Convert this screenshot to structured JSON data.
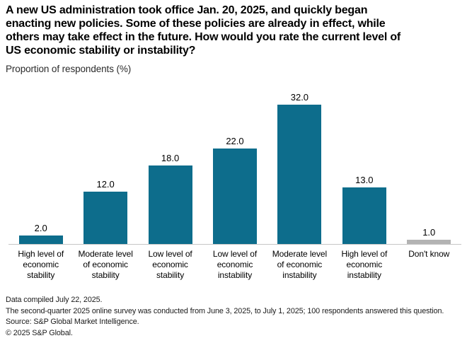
{
  "header": {
    "title_lines": [
      "A new US administration took office Jan. 20, 2025, and quickly began",
      "enacting new policies. Some of these policies are already in effect, while",
      "others may take effect in the future. How would you rate the current level of",
      "US economic stability or instability?"
    ],
    "subtitle": "Proportion of respondents (%)"
  },
  "chart_data": {
    "type": "bar",
    "title": "A new US administration took office Jan. 20, 2025, and quickly began enacting new policies. Some of these policies are already in effect, while others may take effect in the future. How would you rate the current level of US economic stability or instability?",
    "ylabel": "Proportion of respondents (%)",
    "xlabel": "",
    "categories": [
      "High level of economic stability",
      "Moderate level of economic stability",
      "Low level of economic stability",
      "Low level of economic instability",
      "Moderate level of economic instability",
      "High level of economic instability",
      "Don't know"
    ],
    "categories_wrapped": [
      "High level of\neconomic\nstability",
      "Moderate level\nof economic\nstability",
      "Low level of\neconomic\nstability",
      "Low level of\neconomic\ninstability",
      "Moderate level\nof economic\ninstability",
      "High level of\neconomic\ninstability",
      "Don't know"
    ],
    "values": [
      2.0,
      12.0,
      18.0,
      22.0,
      32.0,
      13.0,
      1.0
    ],
    "value_labels": [
      "2.0",
      "12.0",
      "18.0",
      "22.0",
      "32.0",
      "13.0",
      "1.0"
    ],
    "bar_colors": [
      "#0d6d8c",
      "#0d6d8c",
      "#0d6d8c",
      "#0d6d8c",
      "#0d6d8c",
      "#0d6d8c",
      "#b3b3b3"
    ],
    "ylim": [
      0,
      35
    ],
    "grid": false,
    "legend_position": "none",
    "data_labels_shown": true
  },
  "footer": {
    "lines": [
      "Data compiled July 22, 2025.",
      "The second-quarter 2025 online survey was conducted from June 3, 2025, to July 1, 2025; 100 respondents answered this question.",
      "Source: S&P Global Market Intelligence.",
      "© 2025 S&P Global."
    ]
  },
  "colors": {
    "bar_teal": "#0d6d8c",
    "bar_gray": "#b3b3b3",
    "axis_line": "#c6c6c6",
    "text": "#000000"
  }
}
